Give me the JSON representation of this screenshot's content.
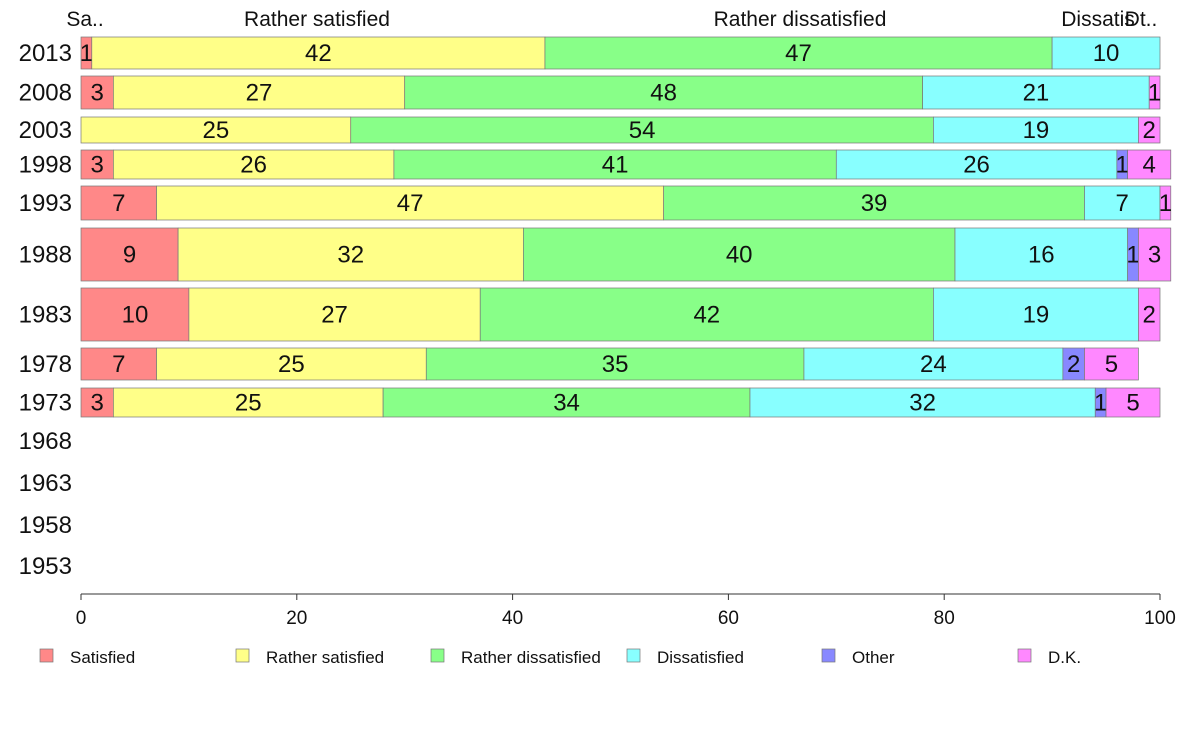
{
  "chart_data": {
    "type": "bar",
    "orientation": "horizontal",
    "stacked": true,
    "categories": [
      "2013",
      "2008",
      "2003",
      "1998",
      "1993",
      "1988",
      "1983",
      "1978",
      "1973",
      "1968",
      "1963",
      "1958",
      "1953"
    ],
    "series": [
      {
        "name": "Satisfied",
        "color": "#ff8888",
        "values": [
          1,
          3,
          null,
          3,
          7,
          9,
          10,
          7,
          3,
          null,
          null,
          null,
          null
        ]
      },
      {
        "name": "Rather satisfied",
        "color": "#ffff88",
        "values": [
          42,
          27,
          25,
          26,
          47,
          32,
          27,
          25,
          25,
          null,
          null,
          null,
          null
        ]
      },
      {
        "name": "Rather dissatisfied",
        "color": "#88ff88",
        "values": [
          47,
          48,
          54,
          41,
          39,
          40,
          42,
          35,
          34,
          null,
          null,
          null,
          null
        ]
      },
      {
        "name": "Dissatisfied",
        "color": "#88ffff",
        "values": [
          10,
          21,
          19,
          26,
          7,
          16,
          19,
          24,
          32,
          null,
          null,
          null,
          null
        ]
      },
      {
        "name": "Other",
        "color": "#8888ff",
        "values": [
          null,
          null,
          null,
          1,
          null,
          1,
          null,
          2,
          1,
          null,
          null,
          null,
          null
        ]
      },
      {
        "name": "D.K.",
        "color": "#ff88ff",
        "values": [
          null,
          1,
          2,
          4,
          1,
          3,
          2,
          5,
          5,
          null,
          null,
          null,
          null
        ]
      }
    ],
    "top_labels": [
      "Sa..",
      "Rather satisfied",
      "Rather dissatisfied",
      "Dissatis",
      "Dt.."
    ],
    "x_ticks": [
      "0",
      "20",
      "40",
      "60",
      "80",
      "100"
    ],
    "xlim": [
      0,
      100
    ],
    "legend_position": "bottom",
    "grid": false
  }
}
